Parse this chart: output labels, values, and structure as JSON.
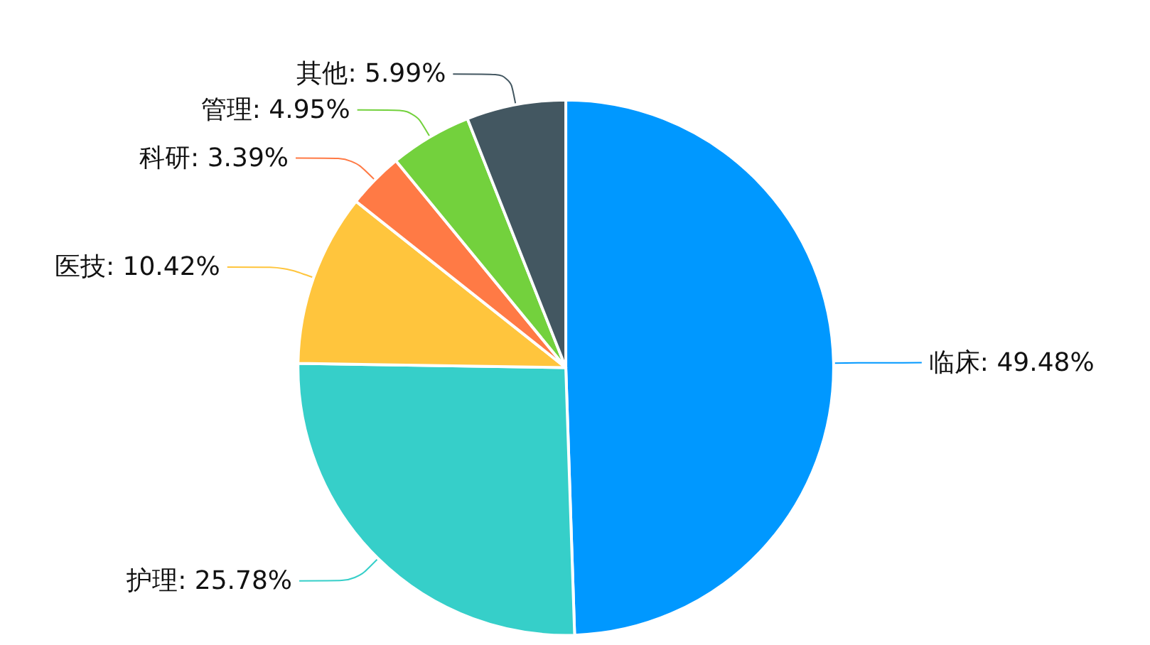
{
  "chart_data": {
    "type": "pie",
    "categories": [
      "临床",
      "护理",
      "医技",
      "科研",
      "管理",
      "其他"
    ],
    "values": [
      49.48,
      25.78,
      10.42,
      3.39,
      4.95,
      5.99
    ],
    "value_labels": [
      "49.48%",
      "25.78%",
      "10.42%",
      "3.39%",
      "4.95%",
      "5.99%"
    ],
    "colors": [
      "#0098ff",
      "#36cfc9",
      "#ffc53d",
      "#ff7a45",
      "#73d13d",
      "#435761"
    ],
    "legend": false
  }
}
